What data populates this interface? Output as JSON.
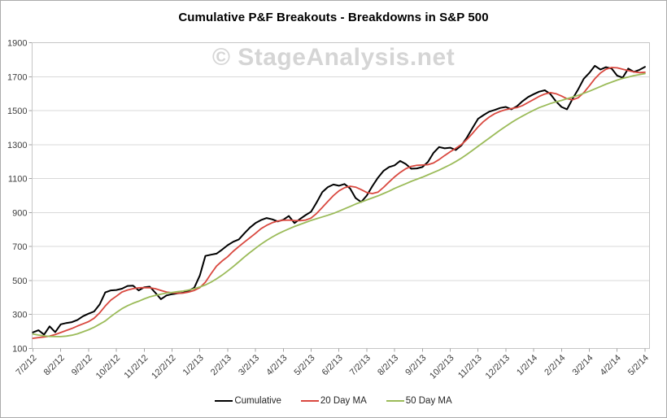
{
  "window": {
    "background": "#ffffff",
    "border_color": "#ababab"
  },
  "header": {
    "title": "Cumulative P&F Breakouts - Breakdowns in S&P 500"
  },
  "watermark": {
    "text": "© StageAnalysis.net",
    "color": "#d5d5d5"
  },
  "legend": {
    "items": [
      {
        "label": "Cumulative",
        "color": "#000000"
      },
      {
        "label": "20 Day MA",
        "color": "#d9483f"
      },
      {
        "label": "50 Day MA",
        "color": "#9bbb59"
      }
    ]
  },
  "chart_data": {
    "type": "line",
    "title": "Cumulative P&F Breakouts - Breakdowns in S&P 500",
    "xlabel": "",
    "ylabel": "",
    "ylim": [
      100,
      1900
    ],
    "y_ticks": [
      100,
      300,
      500,
      700,
      900,
      1100,
      1300,
      1500,
      1700,
      1900
    ],
    "grid": "horizontal-only",
    "legend_position": "bottom-center",
    "x_tick_labels": [
      "7/2/12",
      "8/2/12",
      "9/2/12",
      "10/2/12",
      "11/2/12",
      "12/2/12",
      "1/2/13",
      "2/2/13",
      "3/2/13",
      "4/2/13",
      "5/2/13",
      "6/2/13",
      "7/2/13",
      "8/2/13",
      "9/2/13",
      "10/2/13",
      "11/2/13",
      "12/2/13",
      "1/2/14",
      "2/2/14",
      "3/2/14",
      "4/2/14",
      "5/2/14"
    ],
    "x_unit": "months since 7/2/12, one point per 0.2 month",
    "x_step_months": 0.2,
    "colors": {
      "grid": "#d9d9d9",
      "border": "#c6c6c6",
      "tick": "#a3a3a3",
      "tick_label": "#3d3d3d"
    },
    "series": [
      {
        "name": "Cumulative",
        "color": "#000000",
        "line_width": 2,
        "values": [
          195,
          207,
          182,
          230,
          196,
          242,
          250,
          255,
          268,
          290,
          305,
          318,
          360,
          430,
          442,
          444,
          452,
          468,
          470,
          442,
          460,
          464,
          428,
          390,
          412,
          420,
          424,
          428,
          440,
          458,
          530,
          645,
          652,
          658,
          682,
          708,
          728,
          742,
          778,
          812,
          838,
          856,
          868,
          860,
          848,
          858,
          880,
          838,
          862,
          885,
          905,
          960,
          1020,
          1050,
          1065,
          1058,
          1068,
          1042,
          985,
          962,
          1000,
          1055,
          1105,
          1145,
          1168,
          1178,
          1204,
          1186,
          1158,
          1160,
          1168,
          1198,
          1252,
          1286,
          1278,
          1282,
          1268,
          1295,
          1342,
          1398,
          1452,
          1474,
          1494,
          1504,
          1516,
          1522,
          1508,
          1526,
          1556,
          1580,
          1597,
          1612,
          1620,
          1598,
          1555,
          1522,
          1508,
          1570,
          1625,
          1688,
          1722,
          1764,
          1742,
          1756,
          1748,
          1706,
          1694,
          1748,
          1728,
          1740,
          1758
        ]
      },
      {
        "name": "20 Day MA",
        "color": "#d9483f",
        "line_width": 1.8,
        "values": [
          160,
          164,
          168,
          173,
          182,
          194,
          206,
          218,
          232,
          245,
          258,
          278,
          310,
          350,
          385,
          408,
          432,
          444,
          452,
          457,
          458,
          457,
          452,
          442,
          432,
          428,
          425,
          426,
          432,
          442,
          458,
          490,
          540,
          585,
          615,
          640,
          672,
          700,
          726,
          752,
          778,
          805,
          825,
          840,
          850,
          855,
          856,
          853,
          852,
          856,
          868,
          895,
          930,
          965,
          1000,
          1028,
          1046,
          1055,
          1050,
          1035,
          1018,
          1012,
          1020,
          1048,
          1080,
          1110,
          1136,
          1158,
          1172,
          1178,
          1180,
          1182,
          1192,
          1212,
          1236,
          1258,
          1278,
          1300,
          1330,
          1366,
          1404,
          1436,
          1462,
          1482,
          1496,
          1506,
          1512,
          1518,
          1530,
          1548,
          1566,
          1584,
          1598,
          1606,
          1600,
          1586,
          1570,
          1564,
          1576,
          1606,
          1646,
          1688,
          1722,
          1744,
          1754,
          1752,
          1744,
          1736,
          1728,
          1724,
          1726
        ]
      },
      {
        "name": "50 Day MA",
        "color": "#9bbb59",
        "line_width": 1.8,
        "values": [
          185,
          179,
          174,
          171,
          170,
          170,
          173,
          178,
          186,
          198,
          210,
          225,
          243,
          262,
          288,
          312,
          334,
          352,
          366,
          378,
          392,
          404,
          412,
          420,
          426,
          430,
          434,
          438,
          444,
          452,
          462,
          474,
          490,
          510,
          532,
          556,
          582,
          610,
          638,
          665,
          690,
          714,
          736,
          756,
          774,
          790,
          804,
          818,
          830,
          842,
          854,
          864,
          874,
          884,
          895,
          908,
          922,
          936,
          950,
          962,
          974,
          986,
          998,
          1012,
          1026,
          1042,
          1056,
          1070,
          1084,
          1096,
          1108,
          1122,
          1136,
          1150,
          1166,
          1182,
          1200,
          1220,
          1242,
          1266,
          1290,
          1314,
          1338,
          1362,
          1386,
          1408,
          1430,
          1450,
          1468,
          1486,
          1502,
          1518,
          1530,
          1542,
          1552,
          1560,
          1570,
          1580,
          1590,
          1602,
          1614,
          1628,
          1642,
          1656,
          1668,
          1680,
          1690,
          1698,
          1706,
          1712,
          1718
        ]
      }
    ]
  }
}
